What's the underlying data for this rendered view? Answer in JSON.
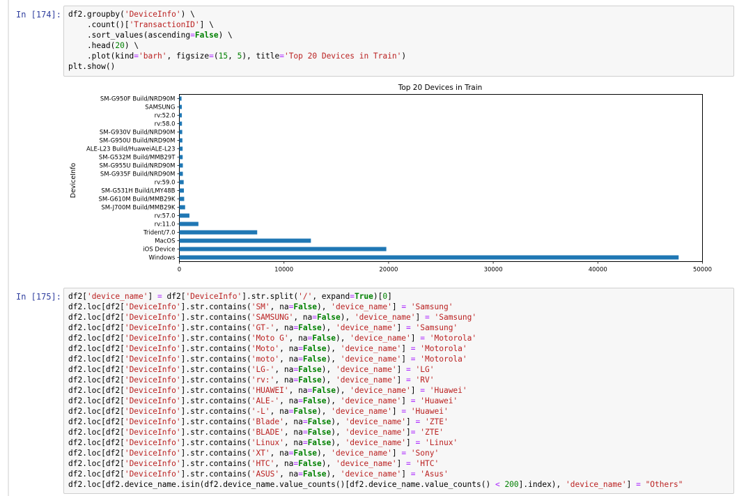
{
  "cell174": {
    "prompt": "In [174]:",
    "lines": [
      [
        [
          "df2.groupby(",
          ""
        ],
        [
          "'DeviceInfo'",
          "s"
        ],
        [
          ") \\",
          ""
        ]
      ],
      [
        [
          "    .count()[",
          ""
        ],
        [
          "'TransactionID'",
          "s"
        ],
        [
          "] \\",
          ""
        ]
      ],
      [
        [
          "    .sort_values(ascending",
          ""
        ],
        [
          "=",
          "o"
        ],
        [
          "False",
          "k"
        ],
        [
          ") \\",
          ""
        ]
      ],
      [
        [
          "    .head(",
          ""
        ],
        [
          "20",
          "n"
        ],
        [
          ") \\",
          ""
        ]
      ],
      [
        [
          "    .plot(kind",
          ""
        ],
        [
          "=",
          "o"
        ],
        [
          "'barh'",
          "s"
        ],
        [
          ", figsize",
          ""
        ],
        [
          "=",
          "o"
        ],
        [
          "(",
          ""
        ],
        [
          "15",
          "n"
        ],
        [
          ", ",
          ""
        ],
        [
          "5",
          "n"
        ],
        [
          "), title",
          ""
        ],
        [
          "=",
          "o"
        ],
        [
          "'Top 20 Devices in Train'",
          "s"
        ],
        [
          ")",
          ""
        ]
      ],
      [
        [
          "plt.show()",
          ""
        ]
      ]
    ]
  },
  "chart_data": {
    "type": "bar",
    "orientation": "horizontal",
    "title": "Top 20 Devices in Train",
    "xlabel": "",
    "ylabel": "DeviceInfo",
    "xlim": [
      0,
      50000
    ],
    "xticks": [
      0,
      10000,
      20000,
      30000,
      40000,
      50000
    ],
    "categories": [
      "Windows",
      "iOS Device",
      "MacOS",
      "Trident/7.0",
      "rv:11.0",
      "rv:57.0",
      "SM-J700M Build/MMB29K",
      "SM-G610M Build/MMB29K",
      "SM-G531H Build/LMY48B",
      "rv:59.0",
      "SM-G935F Build/NRD90M",
      "SM-G955U Build/NRD90M",
      "SM-G532M Build/MMB29T",
      "ALE-L23 Build/HuaweiALE-L23",
      "SM-G950U Build/NRD90M",
      "SM-G930V Build/NRD90M",
      "rv:58.0",
      "rv:52.0",
      "SAMSUNG",
      "SM-G950F Build/NRD90M"
    ],
    "values": [
      47722,
      19782,
      12573,
      7440,
      1821,
      962,
      549,
      461,
      434,
      412,
      334,
      334,
      316,
      312,
      290,
      274,
      248,
      238,
      236,
      207
    ],
    "color": "#1f77b4",
    "grid": false
  },
  "cell175": {
    "prompt": "In [175]:",
    "lines": [
      [
        [
          "df2[",
          ""
        ],
        [
          "'device_name'",
          "s"
        ],
        [
          "] ",
          ""
        ],
        [
          "=",
          "o"
        ],
        [
          " df2[",
          ""
        ],
        [
          "'DeviceInfo'",
          "s"
        ],
        [
          "].str.split(",
          ""
        ],
        [
          "'/'",
          "s"
        ],
        [
          ", expand",
          ""
        ],
        [
          "=",
          "o"
        ],
        [
          "True",
          "k"
        ],
        [
          ")[",
          ""
        ],
        [
          "0",
          "n"
        ],
        [
          "]",
          ""
        ]
      ],
      [
        [
          "df2.loc[df2[",
          ""
        ],
        [
          "'DeviceInfo'",
          "s"
        ],
        [
          "].str.contains(",
          ""
        ],
        [
          "'SM'",
          "s"
        ],
        [
          ", na",
          ""
        ],
        [
          "=",
          "o"
        ],
        [
          "False",
          "k"
        ],
        [
          "), ",
          ""
        ],
        [
          "'device_name'",
          "s"
        ],
        [
          "] ",
          ""
        ],
        [
          "=",
          "o"
        ],
        [
          " ",
          ""
        ],
        [
          "'Samsung'",
          "s"
        ]
      ],
      [
        [
          "df2.loc[df2[",
          ""
        ],
        [
          "'DeviceInfo'",
          "s"
        ],
        [
          "].str.contains(",
          ""
        ],
        [
          "'SAMSUNG'",
          "s"
        ],
        [
          ", na",
          ""
        ],
        [
          "=",
          "o"
        ],
        [
          "False",
          "k"
        ],
        [
          "), ",
          ""
        ],
        [
          "'device_name'",
          "s"
        ],
        [
          "] ",
          ""
        ],
        [
          "=",
          "o"
        ],
        [
          " ",
          ""
        ],
        [
          "'Samsung'",
          "s"
        ]
      ],
      [
        [
          "df2.loc[df2[",
          ""
        ],
        [
          "'DeviceInfo'",
          "s"
        ],
        [
          "].str.contains(",
          ""
        ],
        [
          "'GT-'",
          "s"
        ],
        [
          ", na",
          ""
        ],
        [
          "=",
          "o"
        ],
        [
          "False",
          "k"
        ],
        [
          "), ",
          ""
        ],
        [
          "'device_name'",
          "s"
        ],
        [
          "] ",
          ""
        ],
        [
          "=",
          "o"
        ],
        [
          " ",
          ""
        ],
        [
          "'Samsung'",
          "s"
        ]
      ],
      [
        [
          "df2.loc[df2[",
          ""
        ],
        [
          "'DeviceInfo'",
          "s"
        ],
        [
          "].str.contains(",
          ""
        ],
        [
          "'Moto G'",
          "s"
        ],
        [
          ", na",
          ""
        ],
        [
          "=",
          "o"
        ],
        [
          "False",
          "k"
        ],
        [
          "), ",
          ""
        ],
        [
          "'device_name'",
          "s"
        ],
        [
          "] ",
          ""
        ],
        [
          "=",
          "o"
        ],
        [
          " ",
          ""
        ],
        [
          "'Motorola'",
          "s"
        ]
      ],
      [
        [
          "df2.loc[df2[",
          ""
        ],
        [
          "'DeviceInfo'",
          "s"
        ],
        [
          "].str.contains(",
          ""
        ],
        [
          "'Moto'",
          "s"
        ],
        [
          ", na",
          ""
        ],
        [
          "=",
          "o"
        ],
        [
          "False",
          "k"
        ],
        [
          "), ",
          ""
        ],
        [
          "'device_name'",
          "s"
        ],
        [
          "] ",
          ""
        ],
        [
          "=",
          "o"
        ],
        [
          " ",
          ""
        ],
        [
          "'Motorola'",
          "s"
        ]
      ],
      [
        [
          "df2.loc[df2[",
          ""
        ],
        [
          "'DeviceInfo'",
          "s"
        ],
        [
          "].str.contains(",
          ""
        ],
        [
          "'moto'",
          "s"
        ],
        [
          ", na",
          ""
        ],
        [
          "=",
          "o"
        ],
        [
          "False",
          "k"
        ],
        [
          "), ",
          ""
        ],
        [
          "'device_name'",
          "s"
        ],
        [
          "] ",
          ""
        ],
        [
          "=",
          "o"
        ],
        [
          " ",
          ""
        ],
        [
          "'Motorola'",
          "s"
        ]
      ],
      [
        [
          "df2.loc[df2[",
          ""
        ],
        [
          "'DeviceInfo'",
          "s"
        ],
        [
          "].str.contains(",
          ""
        ],
        [
          "'LG-'",
          "s"
        ],
        [
          ", na",
          ""
        ],
        [
          "=",
          "o"
        ],
        [
          "False",
          "k"
        ],
        [
          "), ",
          ""
        ],
        [
          "'device_name'",
          "s"
        ],
        [
          "] ",
          ""
        ],
        [
          "=",
          "o"
        ],
        [
          " ",
          ""
        ],
        [
          "'LG'",
          "s"
        ]
      ],
      [
        [
          "df2.loc[df2[",
          ""
        ],
        [
          "'DeviceInfo'",
          "s"
        ],
        [
          "].str.contains(",
          ""
        ],
        [
          "'rv:'",
          "s"
        ],
        [
          ", na",
          ""
        ],
        [
          "=",
          "o"
        ],
        [
          "False",
          "k"
        ],
        [
          "), ",
          ""
        ],
        [
          "'device_name'",
          "s"
        ],
        [
          "] ",
          ""
        ],
        [
          "=",
          "o"
        ],
        [
          " ",
          ""
        ],
        [
          "'RV'",
          "s"
        ]
      ],
      [
        [
          "df2.loc[df2[",
          ""
        ],
        [
          "'DeviceInfo'",
          "s"
        ],
        [
          "].str.contains(",
          ""
        ],
        [
          "'HUAWEI'",
          "s"
        ],
        [
          ", na",
          ""
        ],
        [
          "=",
          "o"
        ],
        [
          "False",
          "k"
        ],
        [
          "), ",
          ""
        ],
        [
          "'device_name'",
          "s"
        ],
        [
          "] ",
          ""
        ],
        [
          "=",
          "o"
        ],
        [
          " ",
          ""
        ],
        [
          "'Huawei'",
          "s"
        ]
      ],
      [
        [
          "df2.loc[df2[",
          ""
        ],
        [
          "'DeviceInfo'",
          "s"
        ],
        [
          "].str.contains(",
          ""
        ],
        [
          "'ALE-'",
          "s"
        ],
        [
          ", na",
          ""
        ],
        [
          "=",
          "o"
        ],
        [
          "False",
          "k"
        ],
        [
          "), ",
          ""
        ],
        [
          "'device_name'",
          "s"
        ],
        [
          "] ",
          ""
        ],
        [
          "=",
          "o"
        ],
        [
          " ",
          ""
        ],
        [
          "'Huawei'",
          "s"
        ]
      ],
      [
        [
          "df2.loc[df2[",
          ""
        ],
        [
          "'DeviceInfo'",
          "s"
        ],
        [
          "].str.contains(",
          ""
        ],
        [
          "'-L'",
          "s"
        ],
        [
          ", na",
          ""
        ],
        [
          "=",
          "o"
        ],
        [
          "False",
          "k"
        ],
        [
          "), ",
          ""
        ],
        [
          "'device_name'",
          "s"
        ],
        [
          "] ",
          ""
        ],
        [
          "=",
          "o"
        ],
        [
          " ",
          ""
        ],
        [
          "'Huawei'",
          "s"
        ]
      ],
      [
        [
          "df2.loc[df2[",
          ""
        ],
        [
          "'DeviceInfo'",
          "s"
        ],
        [
          "].str.contains(",
          ""
        ],
        [
          "'Blade'",
          "s"
        ],
        [
          ", na",
          ""
        ],
        [
          "=",
          "o"
        ],
        [
          "False",
          "k"
        ],
        [
          "), ",
          ""
        ],
        [
          "'device_name'",
          "s"
        ],
        [
          "] ",
          ""
        ],
        [
          "=",
          "o"
        ],
        [
          " ",
          ""
        ],
        [
          "'ZTE'",
          "s"
        ]
      ],
      [
        [
          "df2.loc[df2[",
          ""
        ],
        [
          "'DeviceInfo'",
          "s"
        ],
        [
          "].str.contains(",
          ""
        ],
        [
          "'BLADE'",
          "s"
        ],
        [
          ", na",
          ""
        ],
        [
          "=",
          "o"
        ],
        [
          "False",
          "k"
        ],
        [
          "), ",
          ""
        ],
        [
          "'device_name'",
          "s"
        ],
        [
          "]",
          ""
        ],
        [
          "=",
          "o"
        ],
        [
          " ",
          ""
        ],
        [
          "'ZTE'",
          "s"
        ]
      ],
      [
        [
          "df2.loc[df2[",
          ""
        ],
        [
          "'DeviceInfo'",
          "s"
        ],
        [
          "].str.contains(",
          ""
        ],
        [
          "'Linux'",
          "s"
        ],
        [
          ", na",
          ""
        ],
        [
          "=",
          "o"
        ],
        [
          "False",
          "k"
        ],
        [
          "), ",
          ""
        ],
        [
          "'device_name'",
          "s"
        ],
        [
          "] ",
          ""
        ],
        [
          "=",
          "o"
        ],
        [
          " ",
          ""
        ],
        [
          "'Linux'",
          "s"
        ]
      ],
      [
        [
          "df2.loc[df2[",
          ""
        ],
        [
          "'DeviceInfo'",
          "s"
        ],
        [
          "].str.contains(",
          ""
        ],
        [
          "'XT'",
          "s"
        ],
        [
          ", na",
          ""
        ],
        [
          "=",
          "o"
        ],
        [
          "False",
          "k"
        ],
        [
          "), ",
          ""
        ],
        [
          "'device_name'",
          "s"
        ],
        [
          "] ",
          ""
        ],
        [
          "=",
          "o"
        ],
        [
          " ",
          ""
        ],
        [
          "'Sony'",
          "s"
        ]
      ],
      [
        [
          "df2.loc[df2[",
          ""
        ],
        [
          "'DeviceInfo'",
          "s"
        ],
        [
          "].str.contains(",
          ""
        ],
        [
          "'HTC'",
          "s"
        ],
        [
          ", na",
          ""
        ],
        [
          "=",
          "o"
        ],
        [
          "False",
          "k"
        ],
        [
          "), ",
          ""
        ],
        [
          "'device_name'",
          "s"
        ],
        [
          "] ",
          ""
        ],
        [
          "=",
          "o"
        ],
        [
          " ",
          ""
        ],
        [
          "'HTC'",
          "s"
        ]
      ],
      [
        [
          "df2.loc[df2[",
          ""
        ],
        [
          "'DeviceInfo'",
          "s"
        ],
        [
          "].str.contains(",
          ""
        ],
        [
          "'ASUS'",
          "s"
        ],
        [
          ", na",
          ""
        ],
        [
          "=",
          "o"
        ],
        [
          "False",
          "k"
        ],
        [
          "), ",
          ""
        ],
        [
          "'device_name'",
          "s"
        ],
        [
          "] ",
          ""
        ],
        [
          "=",
          "o"
        ],
        [
          " ",
          ""
        ],
        [
          "'Asus'",
          "s"
        ]
      ],
      [
        [
          "df2.loc[df2.device_name.isin(df2.device_name.value_counts()[df2.device_name.value_counts() ",
          ""
        ],
        [
          "<",
          "o"
        ],
        [
          " ",
          ""
        ],
        [
          "200",
          "n"
        ],
        [
          "].index), ",
          ""
        ],
        [
          "'device_name'",
          "s"
        ],
        [
          "] ",
          ""
        ],
        [
          "=",
          "o"
        ],
        [
          " ",
          ""
        ],
        [
          "\"Others\"",
          "s"
        ]
      ]
    ]
  }
}
